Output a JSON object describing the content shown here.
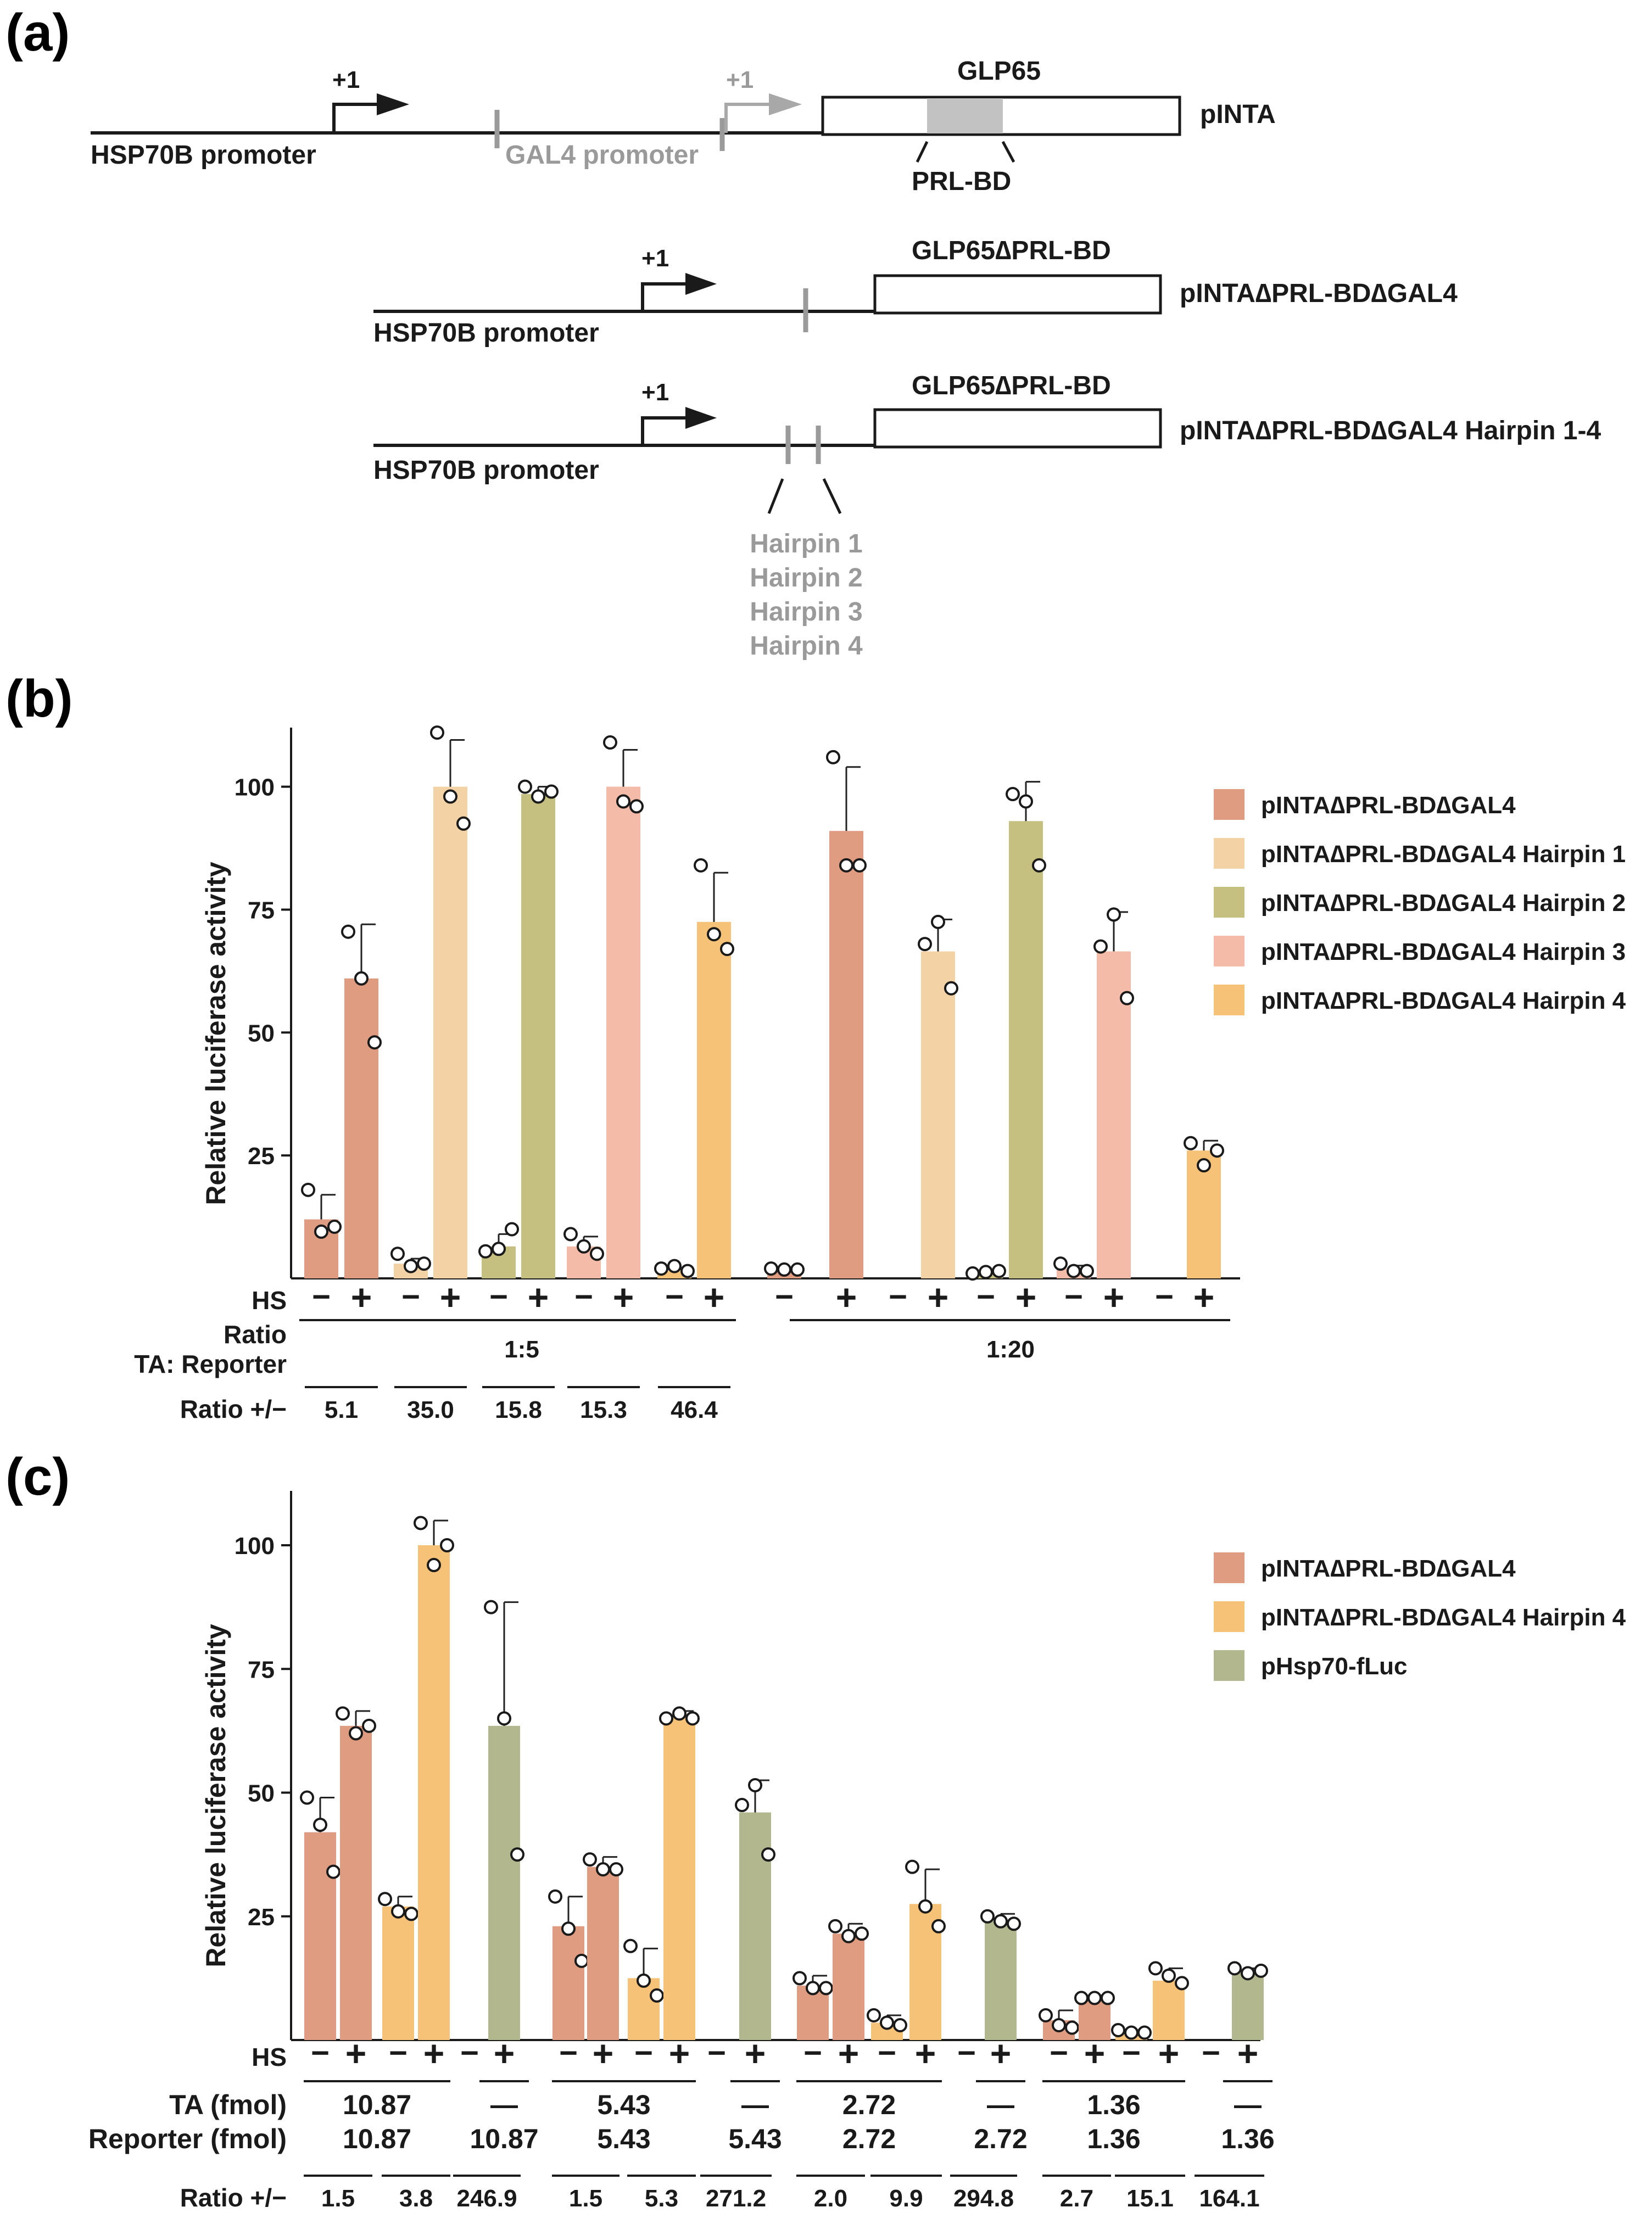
{
  "panel_labels": {
    "a": "(a)",
    "b": "(b)",
    "c": "(c)"
  },
  "schematic": {
    "constructs": [
      {
        "name": "pINTA",
        "promoter": "HSP70B promoter",
        "tss": "+1",
        "tss2": "+1",
        "gal4": "GAL4 promoter",
        "gene": "GLP65",
        "domain": "PRL-BD"
      },
      {
        "name": "pINTA∆PRL-BD∆GAL4",
        "promoter": "HSP70B promoter",
        "tss": "+1",
        "gene": "GLP65∆PRL-BD"
      },
      {
        "name": "pINTA∆PRL-BD∆GAL4 Hairpin 1-4",
        "promoter": "HSP70B promoter",
        "tss": "+1",
        "gene": "GLP65∆PRL-BD",
        "hairpins": [
          "Hairpin 1",
          "Hairpin 2",
          "Hairpin 3",
          "Hairpin 4"
        ]
      }
    ]
  },
  "colors": {
    "base": "#df9c80",
    "hp1": "#f3d3a6",
    "hp2": "#c5c080",
    "hp3": "#f4bca8",
    "hp4": "#f6c277",
    "hsp": "#b3b78e"
  },
  "chart_data": [
    {
      "type": "bar",
      "panel": "b",
      "ylabel": "Relative luciferase activity",
      "ylim": [
        0,
        112
      ],
      "yticks": [
        25,
        50,
        75,
        100
      ],
      "hs_label": "HS",
      "ratio_label": "Ratio",
      "ratio_label2": "TA: Reporter",
      "ratio_pm_label": "Ratio +/−",
      "hs_minus": "−",
      "hs_plus": "+",
      "legend": [
        {
          "label": "pINTA∆PRL-BD∆GAL4",
          "color": "#df9c80"
        },
        {
          "label": "pINTA∆PRL-BD∆GAL4 Hairpin 1",
          "color": "#f3d3a6"
        },
        {
          "label": "pINTA∆PRL-BD∆GAL4 Hairpin 2",
          "color": "#c5c080"
        },
        {
          "label": "pINTA∆PRL-BD∆GAL4 Hairpin 3",
          "color": "#f4bca8"
        },
        {
          "label": "pINTA∆PRL-BD∆GAL4 Hairpin 4",
          "color": "#f6c277"
        }
      ],
      "groups": [
        {
          "ratio": "1:5",
          "ratio_pm": [
            "5.1",
            "35.0",
            "15.8",
            "15.3",
            "46.4"
          ]
        },
        {
          "ratio": "1:20",
          "ratio_pm": []
        }
      ],
      "bars": [
        {
          "series": 0,
          "hs": "−",
          "value": 12,
          "err": 5,
          "points": [
            18,
            9.5,
            10.5
          ],
          "colorKey": "base"
        },
        {
          "series": 0,
          "hs": "+",
          "value": 61,
          "err": 11,
          "points": [
            70.5,
            61,
            48
          ],
          "colorKey": "base"
        },
        {
          "series": 1,
          "hs": "−",
          "value": 3,
          "err": 1,
          "points": [
            5,
            2.5,
            3
          ],
          "colorKey": "hp1"
        },
        {
          "series": 1,
          "hs": "+",
          "value": 100,
          "err": 9.5,
          "points": [
            111,
            98,
            92.5
          ],
          "colorKey": "hp1"
        },
        {
          "series": 2,
          "hs": "−",
          "value": 6.5,
          "err": 2.5,
          "points": [
            5.5,
            6,
            10
          ],
          "colorKey": "hp2"
        },
        {
          "series": 2,
          "hs": "+",
          "value": 98.5,
          "err": 1.5,
          "points": [
            100,
            98,
            99
          ],
          "colorKey": "hp2"
        },
        {
          "series": 3,
          "hs": "−",
          "value": 6.5,
          "err": 2,
          "points": [
            9,
            6.5,
            5
          ],
          "colorKey": "hp3"
        },
        {
          "series": 3,
          "hs": "+",
          "value": 100,
          "err": 7.5,
          "points": [
            109,
            97,
            96
          ],
          "colorKey": "hp3"
        },
        {
          "series": 4,
          "hs": "−",
          "value": 1.5,
          "err": 0.5,
          "points": [
            2,
            2.5,
            1.5
          ],
          "colorKey": "hp4"
        },
        {
          "series": 4,
          "hs": "+",
          "value": 72.5,
          "err": 10,
          "points": [
            84,
            70,
            67
          ],
          "colorKey": "hp4"
        },
        {
          "series": 0,
          "hs": "−",
          "value": 1.5,
          "err": 0.3,
          "points": [
            2,
            1.8,
            1.8
          ],
          "colorKey": "base"
        },
        {
          "series": 0,
          "hs": "+",
          "value": 91,
          "err": 13,
          "points": [
            106,
            84,
            84
          ],
          "colorKey": "base"
        },
        {
          "series": 1,
          "hs": "−",
          "value": 0,
          "err": 0,
          "points": [],
          "colorKey": "hp1"
        },
        {
          "series": 1,
          "hs": "+",
          "value": 66.5,
          "err": 6.5,
          "points": [
            68,
            72.5,
            59
          ],
          "colorKey": "hp1"
        },
        {
          "series": 2,
          "hs": "−",
          "value": 1,
          "err": 0.3,
          "points": [
            1,
            1.3,
            1.5
          ],
          "colorKey": "hp2"
        },
        {
          "series": 2,
          "hs": "+",
          "value": 93,
          "err": 8,
          "points": [
            98.5,
            97,
            84
          ],
          "colorKey": "hp2"
        },
        {
          "series": 3,
          "hs": "−",
          "value": 2,
          "err": 0.6,
          "points": [
            3,
            1.5,
            1.5
          ],
          "colorKey": "hp3"
        },
        {
          "series": 3,
          "hs": "+",
          "value": 66.5,
          "err": 8,
          "points": [
            67.5,
            74,
            57
          ],
          "colorKey": "hp3"
        },
        {
          "series": 4,
          "hs": "−",
          "value": 0,
          "err": 0,
          "points": [],
          "colorKey": "hp4"
        },
        {
          "series": 4,
          "hs": "+",
          "value": 26,
          "err": 2,
          "points": [
            27.5,
            23,
            26
          ],
          "colorKey": "hp4"
        }
      ]
    },
    {
      "type": "bar",
      "panel": "c",
      "ylabel": "Relative luciferase activity",
      "ylim": [
        0,
        112
      ],
      "yticks": [
        25,
        50,
        75,
        100
      ],
      "hs_label": "HS",
      "ta_label": "TA (fmol)",
      "reporter_label": "Reporter (fmol)",
      "ratio_pm_label": "Ratio +/−",
      "dash": "—",
      "legend": [
        {
          "label": "pINTA∆PRL-BD∆GAL4",
          "color": "#df9c80"
        },
        {
          "label": "pINTA∆PRL-BD∆GAL4 Hairpin 4",
          "color": "#f6c277"
        },
        {
          "label": "pHsp70-fLuc",
          "color": "#b3b78e"
        }
      ],
      "amounts": [
        "10.87",
        "5.43",
        "2.72",
        "1.36"
      ],
      "ratio_pm": [
        "1.5",
        "3.8",
        "246.9",
        "1.5",
        "5.3",
        "271.2",
        "2.0",
        "9.9",
        "294.8",
        "2.7",
        "15.1",
        "164.1"
      ],
      "bars": [
        {
          "hs": "−",
          "value": 42,
          "err": 7,
          "points": [
            49,
            43.5,
            34
          ],
          "colorKey": "base"
        },
        {
          "hs": "+",
          "value": 63.5,
          "err": 3,
          "points": [
            66,
            62,
            63.5
          ],
          "colorKey": "base"
        },
        {
          "hs": "−",
          "value": 27,
          "err": 2,
          "points": [
            28.5,
            26,
            25.5
          ],
          "colorKey": "hp4"
        },
        {
          "hs": "+",
          "value": 100,
          "err": 5,
          "points": [
            104.5,
            96,
            100
          ],
          "colorKey": "hp4"
        },
        {
          "hs": "−",
          "value": 0,
          "err": 0,
          "points": [],
          "colorKey": "hsp"
        },
        {
          "hs": "+",
          "value": 63.5,
          "err": 25,
          "points": [
            87.5,
            65,
            37.5
          ],
          "colorKey": "hsp"
        },
        {
          "hs": "−",
          "value": 23,
          "err": 6,
          "points": [
            29,
            22.5,
            16
          ],
          "colorKey": "base"
        },
        {
          "hs": "+",
          "value": 35,
          "err": 2,
          "points": [
            36.5,
            34.5,
            34.5
          ],
          "colorKey": "base"
        },
        {
          "hs": "−",
          "value": 12.5,
          "err": 6,
          "points": [
            19,
            12,
            9
          ],
          "colorKey": "hp4"
        },
        {
          "hs": "+",
          "value": 65.5,
          "err": 1,
          "points": [
            65,
            66,
            65
          ],
          "colorKey": "hp4"
        },
        {
          "hs": "−",
          "value": 0,
          "err": 0,
          "points": [],
          "colorKey": "hsp"
        },
        {
          "hs": "+",
          "value": 46,
          "err": 6.5,
          "points": [
            47.5,
            51.5,
            37.5
          ],
          "colorKey": "hsp"
        },
        {
          "hs": "−",
          "value": 11,
          "err": 2,
          "points": [
            12.5,
            10.5,
            10.5
          ],
          "colorKey": "base"
        },
        {
          "hs": "+",
          "value": 21.5,
          "err": 2,
          "points": [
            23,
            21,
            21.5
          ],
          "colorKey": "base"
        },
        {
          "hs": "−",
          "value": 3.5,
          "err": 1.5,
          "points": [
            5,
            3.5,
            3
          ],
          "colorKey": "hp4"
        },
        {
          "hs": "+",
          "value": 27.5,
          "err": 7,
          "points": [
            35,
            27,
            23
          ],
          "colorKey": "hp4"
        },
        {
          "hs": "−",
          "value": 0,
          "err": 0,
          "points": [],
          "colorKey": "hsp"
        },
        {
          "hs": "+",
          "value": 24,
          "err": 1.5,
          "points": [
            25,
            24,
            23.5
          ],
          "colorKey": "hsp"
        },
        {
          "hs": "−",
          "value": 4,
          "err": 2,
          "points": [
            5,
            3,
            2.5
          ],
          "colorKey": "base"
        },
        {
          "hs": "+",
          "value": 8.5,
          "err": 0.5,
          "points": [
            8.5,
            8.5,
            8.5
          ],
          "colorKey": "base"
        },
        {
          "hs": "−",
          "value": 1.5,
          "err": 0.5,
          "points": [
            2,
            1.5,
            1.5
          ],
          "colorKey": "hp4"
        },
        {
          "hs": "+",
          "value": 12,
          "err": 2.5,
          "points": [
            14.5,
            13,
            11.5
          ],
          "colorKey": "hp4"
        },
        {
          "hs": "−",
          "value": 0,
          "err": 0,
          "points": [],
          "colorKey": "hsp"
        },
        {
          "hs": "+",
          "value": 14,
          "err": 0.5,
          "points": [
            14.5,
            13.5,
            14
          ],
          "colorKey": "hsp"
        }
      ]
    }
  ]
}
